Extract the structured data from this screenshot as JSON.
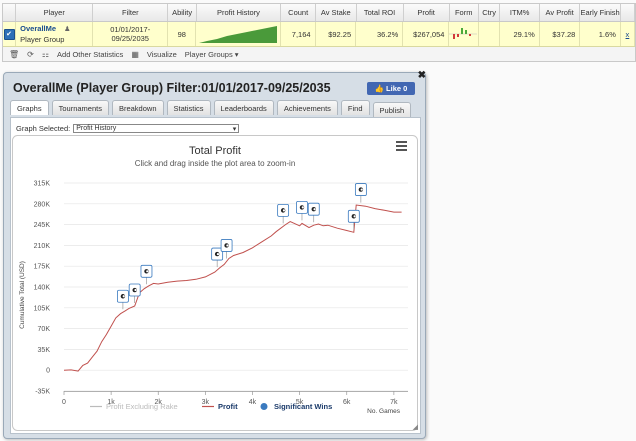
{
  "table": {
    "headers": [
      "",
      "Player",
      "Filter",
      "Ability",
      "Profit History",
      "Count",
      "Av Stake",
      "Total ROI",
      "Profit",
      "Form",
      "Ctry",
      "ITM%",
      "Av Profit",
      "Early Finish",
      ""
    ],
    "row": {
      "player_name": "OverallMe",
      "player_sub": "Player Group",
      "filter_line1": "01/01/2017-",
      "filter_line2": "09/25/2035",
      "ability": "98",
      "count": "7,164",
      "av_stake": "$92.25",
      "total_roi": "36.2%",
      "profit": "$267,054",
      "ctry": "",
      "itm": "29.1%",
      "av_profit": "$37.28",
      "early_finish": "1.6%",
      "remove": "x"
    }
  },
  "toolbar": {
    "add_stats": "Add Other Statistics",
    "visualize": "Visualize",
    "player_groups": "Player Groups ▾"
  },
  "dialog": {
    "title": "OverallMe (Player Group) Filter:01/01/2017-09/25/2035",
    "like_label": "Like 0",
    "close": "✖",
    "tabs": [
      "Graphs",
      "Tournaments",
      "Breakdown",
      "Statistics",
      "Leaderboards",
      "Achievements",
      "Find",
      "Publish"
    ],
    "graph_selected_label": "Graph Selected:",
    "graph_selected_value": "Profit History"
  },
  "colors": {
    "profit_line": "#c0504d",
    "rake_line": "#bbbbbb",
    "marker": "#3a7abf",
    "accent": "#1a4d8f"
  },
  "chart_data": {
    "type": "line",
    "title": "Total Profit",
    "subtitle": "Click and drag inside the plot area to zoom-in",
    "ylabel": "Cumulative Total (USD)",
    "xlabel": "No. Games",
    "xlim": [
      0,
      7300
    ],
    "ylim": [
      -35000,
      315000
    ],
    "yticks": [
      -35000,
      0,
      35000,
      70000,
      105000,
      140000,
      175000,
      210000,
      245000,
      280000,
      315000
    ],
    "ytick_labels": [
      "-35K",
      "0",
      "35K",
      "70K",
      "105K",
      "140K",
      "175K",
      "210K",
      "245K",
      "280K",
      "315K"
    ],
    "xticks": [
      0,
      1000,
      2000,
      3000,
      4000,
      5000,
      6000,
      7000
    ],
    "xtick_labels": [
      "0",
      "1k",
      "2k",
      "3k",
      "4k",
      "5k",
      "6k",
      "7k"
    ],
    "legend": [
      "Profit Excluding Rake",
      "Profit",
      "Significant Wins"
    ],
    "series": [
      {
        "name": "Profit",
        "x": [
          0,
          150,
          300,
          400,
          500,
          600,
          700,
          800,
          900,
          1000,
          1100,
          1200,
          1300,
          1380,
          1500,
          1600,
          1700,
          1800,
          1900,
          2000,
          2200,
          2400,
          2600,
          2800,
          3000,
          3200,
          3300,
          3400,
          3500,
          3600,
          3800,
          4000,
          4200,
          4400,
          4500,
          4700,
          4800,
          5000,
          5050,
          5200,
          5300,
          5400,
          5500,
          5600,
          5800,
          6000,
          6150,
          6200,
          6400,
          6600,
          6800,
          7000,
          7164
        ],
        "y": [
          0,
          500,
          -1500,
          8000,
          12000,
          22000,
          32000,
          48000,
          60000,
          74000,
          88000,
          95000,
          100000,
          104000,
          108000,
          130000,
          137000,
          142000,
          146000,
          145000,
          148000,
          150000,
          151000,
          153000,
          157000,
          165000,
          172000,
          178000,
          188000,
          193000,
          198000,
          206000,
          216000,
          226000,
          233000,
          245000,
          250000,
          243000,
          247000,
          240000,
          244000,
          246000,
          243000,
          244000,
          239000,
          235000,
          232000,
          278000,
          276000,
          272000,
          269000,
          266000,
          266000
        ]
      }
    ],
    "significant_wins_x": [
      1250,
      1500,
      1750,
      3250,
      3450,
      4650,
      5050,
      5300,
      6150,
      6300
    ]
  }
}
